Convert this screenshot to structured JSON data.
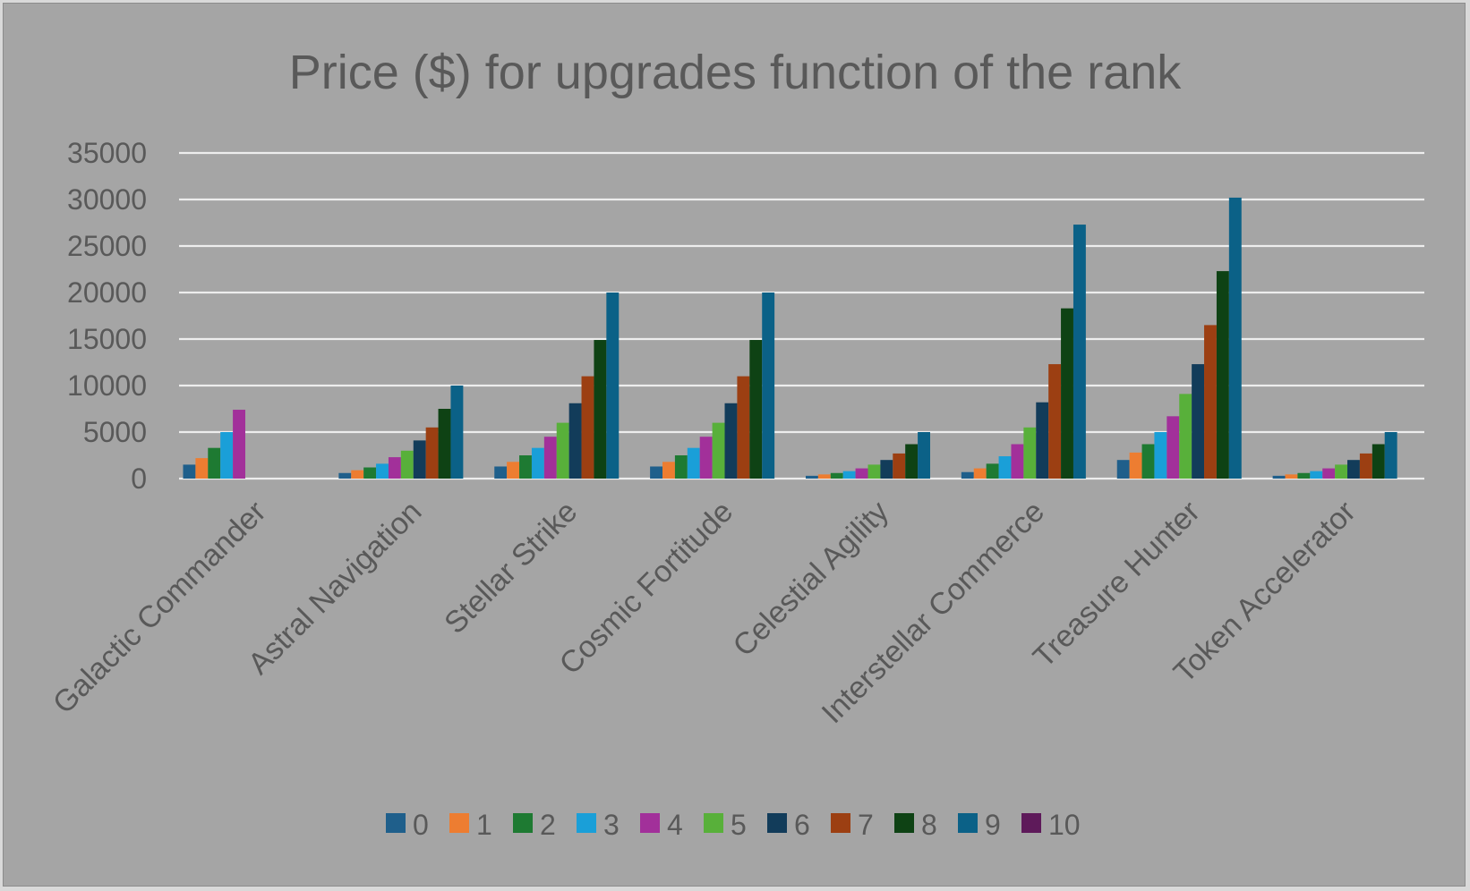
{
  "chart_data": {
    "type": "bar",
    "title": "Price ($) for upgrades function of the rank",
    "xlabel": "",
    "ylabel": "",
    "ylim": [
      0,
      35000
    ],
    "yticks": [
      0,
      5000,
      10000,
      15000,
      20000,
      25000,
      30000,
      35000
    ],
    "grid": true,
    "legend_position": "bottom",
    "categories": [
      "Galactic Commander",
      "Astral Navigation",
      "Stellar Strike",
      "Cosmic Fortitude",
      "Celestial Agility",
      "Interstellar Commerce",
      "Treasure Hunter",
      "Token Accelerator"
    ],
    "series": [
      {
        "name": "0",
        "color": "#1f5f8b",
        "values": [
          1500,
          600,
          1300,
          1300,
          300,
          700,
          2000,
          300
        ]
      },
      {
        "name": "1",
        "color": "#ed7d31",
        "values": [
          2200,
          900,
          1800,
          1800,
          450,
          1100,
          2800,
          450
        ]
      },
      {
        "name": "2",
        "color": "#1e7a32",
        "values": [
          3300,
          1200,
          2500,
          2500,
          600,
          1600,
          3700,
          600
        ]
      },
      {
        "name": "3",
        "color": "#1a9fd8",
        "values": [
          5000,
          1600,
          3300,
          3300,
          800,
          2400,
          5000,
          800
        ]
      },
      {
        "name": "4",
        "color": "#a2309a",
        "values": [
          7400,
          2300,
          4500,
          4500,
          1100,
          3700,
          6700,
          1100
        ]
      },
      {
        "name": "5",
        "color": "#58b03a",
        "values": [
          null,
          3000,
          6000,
          6000,
          1500,
          5500,
          9100,
          1500
        ]
      },
      {
        "name": "6",
        "color": "#123c5a",
        "values": [
          null,
          4100,
          8100,
          8100,
          2000,
          8200,
          12300,
          2000
        ]
      },
      {
        "name": "7",
        "color": "#9c3f12",
        "values": [
          null,
          5500,
          11000,
          11000,
          2700,
          12300,
          16500,
          2700
        ]
      },
      {
        "name": "8",
        "color": "#0e4214",
        "values": [
          null,
          7500,
          14900,
          14900,
          3700,
          18300,
          22300,
          3700
        ]
      },
      {
        "name": "9",
        "color": "#0b6187",
        "values": [
          null,
          10000,
          20000,
          20000,
          5000,
          27300,
          30200,
          5000
        ]
      },
      {
        "name": "10",
        "color": "#5e1a5a",
        "values": [
          null,
          null,
          null,
          null,
          null,
          null,
          null,
          null
        ]
      }
    ]
  }
}
